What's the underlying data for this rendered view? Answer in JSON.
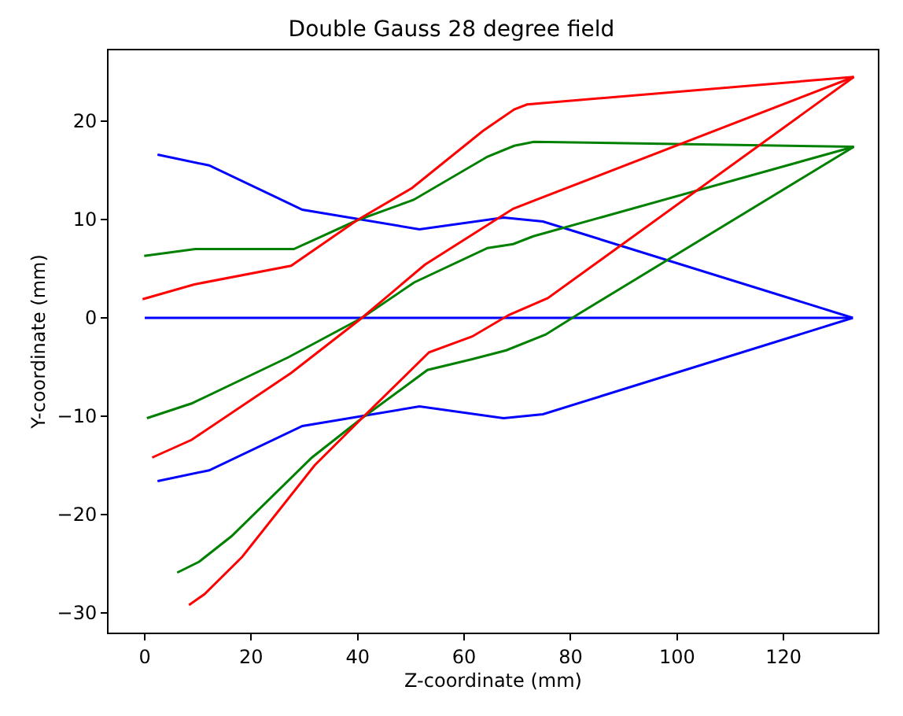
{
  "chart_data": {
    "type": "line",
    "title": "Double Gauss 28 degree field",
    "xlabel": "Z-coordinate (mm)",
    "ylabel": "Y-coordinate (mm)",
    "xlim": [
      -6.8,
      137.7
    ],
    "ylim": [
      -32,
      27.2
    ],
    "xticks": [
      0,
      20,
      40,
      60,
      80,
      100,
      120
    ],
    "yticks": [
      -30,
      -20,
      -10,
      0,
      10,
      20
    ],
    "marker": "none",
    "line_style": "solid",
    "series": [
      {
        "color": "#0000ff",
        "x": [
          2.4,
          12.1,
          29.6,
          51.6,
          67.4,
          74.8,
          133
        ],
        "values": [
          16.6,
          15.5,
          11.0,
          9.0,
          10.2,
          9.8,
          0
        ]
      },
      {
        "color": "#0000ff",
        "x": [
          0,
          133
        ],
        "values": [
          0,
          0
        ]
      },
      {
        "color": "#0000ff",
        "x": [
          2.4,
          12.1,
          29.6,
          51.6,
          67.4,
          74.8,
          133
        ],
        "values": [
          -16.6,
          -15.5,
          -11.0,
          -9.0,
          -10.2,
          -9.8,
          0
        ]
      },
      {
        "color": "#008000",
        "x": [
          -0.1,
          9.5,
          28,
          39.8,
          50.5,
          64.4,
          69.4,
          73.1,
          133.2
        ],
        "values": [
          6.3,
          7.0,
          7.0,
          9.9,
          12.0,
          16.4,
          17.5,
          17.9,
          17.4
        ]
      },
      {
        "color": "#008000",
        "x": [
          0.4,
          8.8,
          27,
          40.8,
          50.6,
          64.4,
          69.2,
          73,
          133.2
        ],
        "values": [
          -10.2,
          -8.7,
          -4.0,
          0,
          3.6,
          7.1,
          7.5,
          8.3,
          17.4
        ]
      },
      {
        "color": "#008000",
        "x": [
          6.1,
          10.2,
          16.3,
          31.4,
          40.8,
          53.1,
          61.5,
          67.9,
          75.3,
          81.2,
          133.2
        ],
        "values": [
          -25.9,
          -24.8,
          -22.2,
          -14.2,
          -10.2,
          -5.3,
          -4.2,
          -3.3,
          -1.7,
          0.3,
          17.4
        ]
      },
      {
        "color": "#ff0000",
        "x": [
          -0.4,
          9.3,
          27.5,
          39.8,
          50.2,
          63.5,
          69.4,
          71.8,
          133.2
        ],
        "values": [
          1.9,
          3.4,
          5.3,
          9.9,
          13.2,
          19.0,
          21.2,
          21.7,
          24.5
        ]
      },
      {
        "color": "#ff0000",
        "x": [
          1.4,
          8.8,
          27.5,
          40.8,
          52.6,
          69.2,
          133.2
        ],
        "values": [
          -14.2,
          -12.4,
          -5.6,
          0,
          5.4,
          11.1,
          24.5
        ]
      },
      {
        "color": "#ff0000",
        "x": [
          8.3,
          11.2,
          18.3,
          31.9,
          40.8,
          53.4,
          61.5,
          68.4,
          75.7,
          133.2
        ],
        "values": [
          -29.2,
          -28.1,
          -24.3,
          -15.0,
          -10.2,
          -3.5,
          -1.9,
          0.3,
          2.0,
          24.5
        ]
      }
    ]
  }
}
